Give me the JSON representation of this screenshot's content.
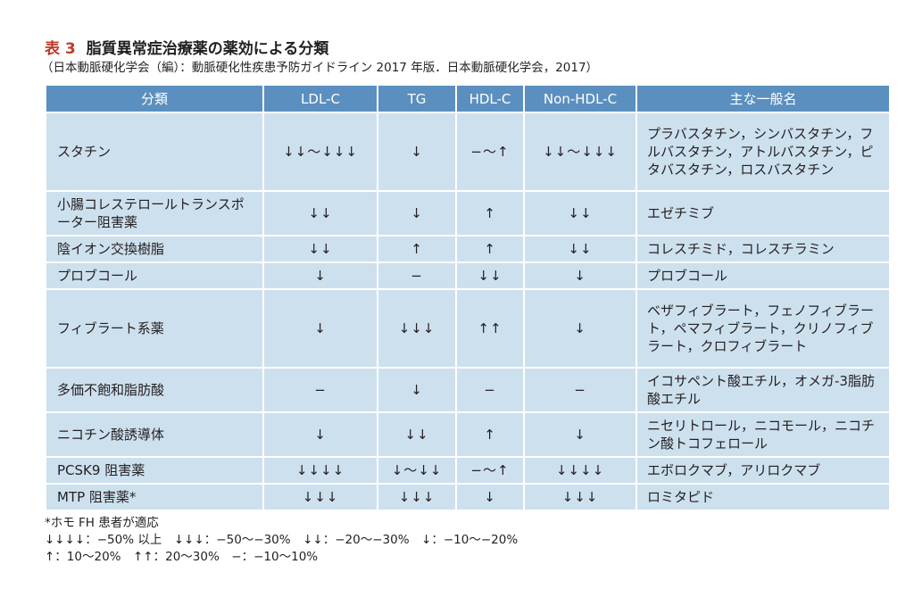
{
  "title": {
    "label": "表 3",
    "text": "脂質異常症治療薬の薬効による分類"
  },
  "subtitle": "（日本動脈硬化学会（編）：動脈硬化性疾患予防ガイドライン 2017 年版．日本動脈硬化学会，2017）",
  "colors": {
    "title_label": "#c0392b",
    "header_bg": "#5b8fbf",
    "cell_bg": "#cde0ee"
  },
  "table": {
    "headers": [
      "分類",
      "LDL-C",
      "TG",
      "HDL-C",
      "Non-HDL-C",
      "主な一般名"
    ],
    "rows": [
      [
        "スタチン",
        "↓↓〜↓↓↓",
        "↓",
        "−〜↑",
        "↓↓〜↓↓↓",
        "プラバスタチン，シンバスタチン，フルバスタチン，アトルバスタチン，ピタバスタチン，ロスバスタチン"
      ],
      [
        "小腸コレステロールトランスポーター阻害薬",
        "↓↓",
        "↓",
        "↑",
        "↓↓",
        "エゼチミブ"
      ],
      [
        "陰イオン交換樹脂",
        "↓↓",
        "↑",
        "↑",
        "↓↓",
        "コレスチミド，コレスチラミン"
      ],
      [
        "プロブコール",
        "↓",
        "−",
        "↓↓",
        "↓",
        "プロブコール"
      ],
      [
        "フィブラート系薬",
        "↓",
        "↓↓↓",
        "↑↑",
        "↓",
        "ベザフィブラート，フェノフィブラート，ペマフィブラート，クリノフィブラート，クロフィブラート"
      ],
      [
        "多価不飽和脂肪酸",
        "−",
        "↓",
        "−",
        "−",
        "イコサペント酸エチル，オメガ-3脂肪酸エチル"
      ],
      [
        "ニコチン酸誘導体",
        "↓",
        "↓↓",
        "↑",
        "↓",
        "ニセリトロール，ニコモール，ニコチン酸トコフェロール"
      ],
      [
        "PCSK9 阻害薬",
        "↓↓↓↓",
        "↓〜↓↓",
        "−〜↑",
        "↓↓↓↓",
        "エボロクマブ，アリロクマブ"
      ],
      [
        "MTP 阻害薬*",
        "↓↓↓",
        "↓↓↓",
        "↓",
        "↓↓↓",
        "ロミタピド"
      ]
    ]
  },
  "footnotes": [
    "*ホモ FH 患者が適応",
    "↓↓↓↓：−50% 以上　↓↓↓：−50〜−30%　↓↓：−20〜−30%　↓：−10〜−20%",
    "↑：10〜20%　↑↑：20〜30%　−：−10〜10%"
  ]
}
